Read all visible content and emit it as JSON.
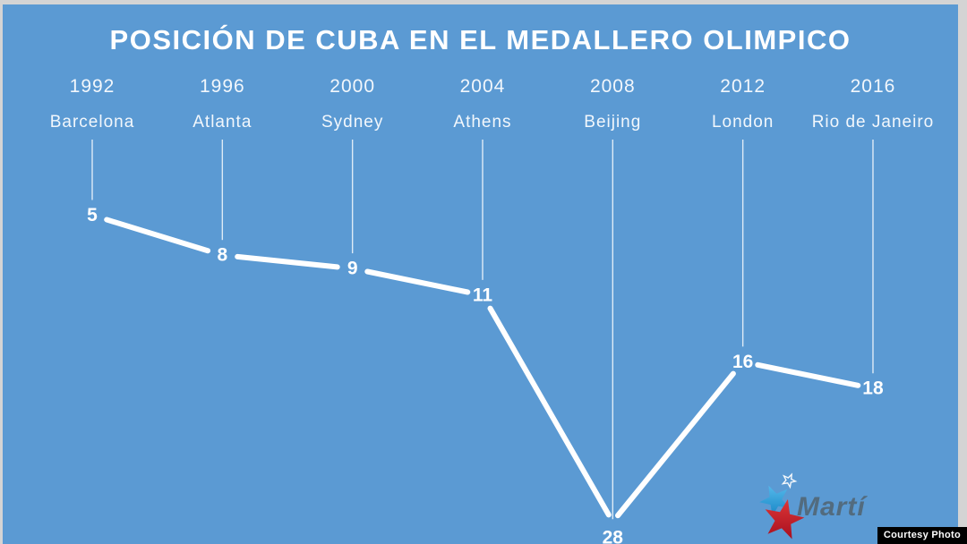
{
  "title": "POSICIÓN DE CUBA EN EL MEDALLERO OLIMPICO",
  "chart_data": {
    "type": "line",
    "title": "POSICIÓN DE CUBA EN EL MEDALLERO OLIMPICO",
    "categories": [
      "1992",
      "1996",
      "2000",
      "2004",
      "2008",
      "2012",
      "2016"
    ],
    "category_sublabels": [
      "Barcelona",
      "Atlanta",
      "Sydney",
      "Athens",
      "Beijing",
      "London",
      "Rio de Janeiro"
    ],
    "series": [
      {
        "name": "Posición de Cuba en el medallero olímpico",
        "values": [
          5,
          8,
          9,
          11,
          28,
          16,
          18
        ]
      }
    ],
    "data_labels": [
      "5",
      "8",
      "9",
      "11",
      "28",
      "16",
      "18"
    ],
    "y_axis_inverted": true,
    "ylim": [
      1,
      30
    ],
    "grid": "vertical drop lines from category labels to points",
    "legend": "none"
  },
  "watermark": {
    "brand": "Martí"
  },
  "credit": {
    "label": "Courtesy Photo"
  },
  "colors": {
    "background": "#5b9ad3",
    "frame": "#d4d4d4",
    "line": "#ffffff",
    "text": "#ffffff",
    "logo_blue_star": "#2fa3e0",
    "logo_red_star": "#c81a2b",
    "logo_brand_text": "#4f5e66",
    "credit_bg": "#000000",
    "credit_text": "#ffffff"
  }
}
